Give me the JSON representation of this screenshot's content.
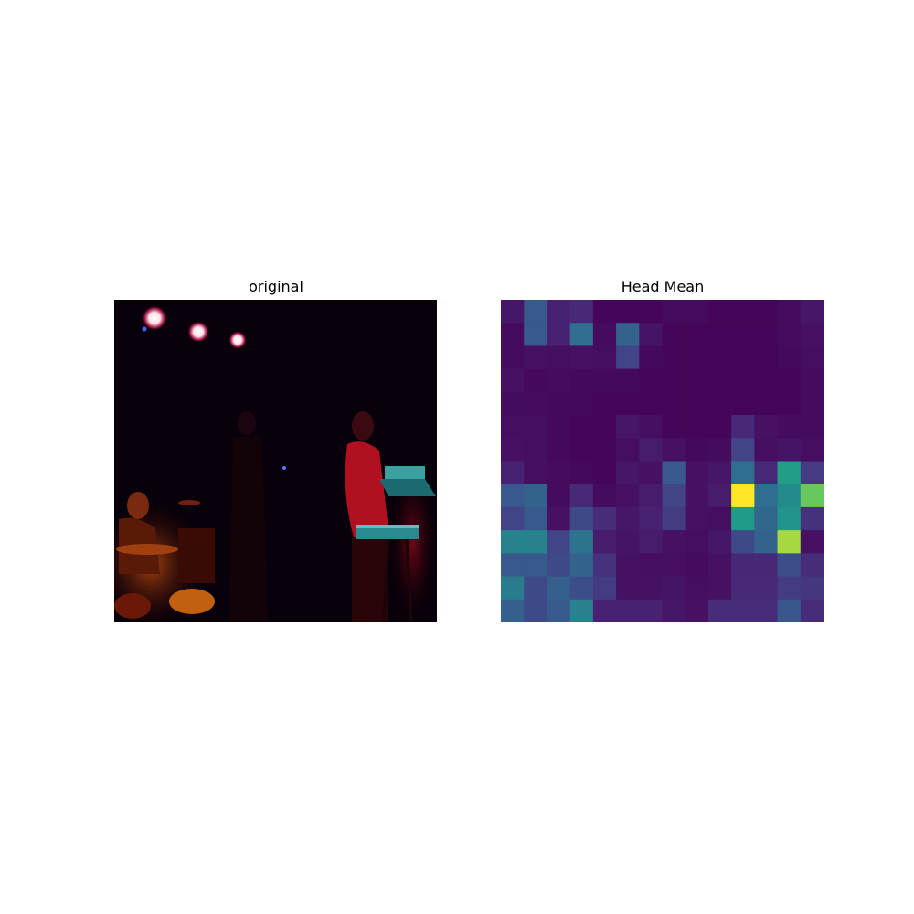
{
  "panels": {
    "left_title": "original",
    "right_title": "Head Mean"
  },
  "chart_data": {
    "type": "heatmap",
    "title": "Head Mean",
    "rows": 14,
    "cols": 14,
    "colormap": "viridis",
    "values": [
      [
        0.08,
        0.35,
        0.12,
        0.15,
        0.02,
        0.02,
        0.02,
        0.04,
        0.04,
        0.02,
        0.02,
        0.02,
        0.04,
        0.08
      ],
      [
        0.04,
        0.35,
        0.12,
        0.45,
        0.04,
        0.4,
        0.07,
        0.02,
        0.02,
        0.02,
        0.02,
        0.02,
        0.04,
        0.06
      ],
      [
        0.04,
        0.06,
        0.05,
        0.06,
        0.05,
        0.25,
        0.03,
        0.02,
        0.02,
        0.02,
        0.02,
        0.02,
        0.03,
        0.05
      ],
      [
        0.06,
        0.03,
        0.04,
        0.03,
        0.03,
        0.03,
        0.02,
        0.02,
        0.02,
        0.02,
        0.02,
        0.02,
        0.02,
        0.04
      ],
      [
        0.04,
        0.04,
        0.03,
        0.03,
        0.02,
        0.02,
        0.02,
        0.02,
        0.02,
        0.02,
        0.02,
        0.02,
        0.02,
        0.04
      ],
      [
        0.05,
        0.05,
        0.03,
        0.02,
        0.02,
        0.08,
        0.05,
        0.02,
        0.02,
        0.02,
        0.15,
        0.06,
        0.04,
        0.04
      ],
      [
        0.06,
        0.05,
        0.03,
        0.02,
        0.02,
        0.05,
        0.1,
        0.06,
        0.03,
        0.04,
        0.25,
        0.05,
        0.07,
        0.05
      ],
      [
        0.12,
        0.05,
        0.04,
        0.03,
        0.02,
        0.08,
        0.06,
        0.35,
        0.06,
        0.08,
        0.45,
        0.15,
        0.7,
        0.22
      ],
      [
        0.35,
        0.4,
        0.04,
        0.15,
        0.04,
        0.06,
        0.1,
        0.25,
        0.06,
        0.1,
        1.0,
        0.45,
        0.6,
        0.85
      ],
      [
        0.25,
        0.35,
        0.06,
        0.28,
        0.16,
        0.08,
        0.12,
        0.22,
        0.06,
        0.05,
        0.68,
        0.42,
        0.65,
        0.18
      ],
      [
        0.55,
        0.55,
        0.25,
        0.48,
        0.1,
        0.07,
        0.1,
        0.06,
        0.05,
        0.08,
        0.28,
        0.4,
        0.92,
        0.06
      ],
      [
        0.35,
        0.35,
        0.28,
        0.4,
        0.18,
        0.06,
        0.05,
        0.05,
        0.04,
        0.06,
        0.14,
        0.14,
        0.3,
        0.16
      ],
      [
        0.52,
        0.28,
        0.38,
        0.3,
        0.22,
        0.06,
        0.06,
        0.07,
        0.05,
        0.06,
        0.15,
        0.15,
        0.22,
        0.2
      ],
      [
        0.38,
        0.28,
        0.35,
        0.55,
        0.12,
        0.12,
        0.12,
        0.08,
        0.06,
        0.16,
        0.16,
        0.16,
        0.34,
        0.16
      ]
    ]
  }
}
